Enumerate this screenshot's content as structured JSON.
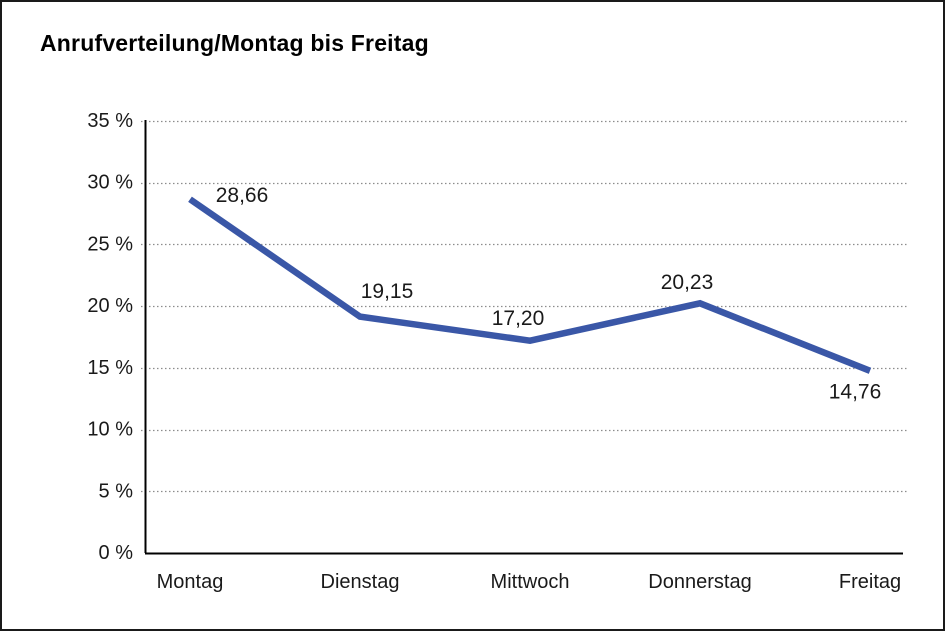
{
  "title": "Anrufverteilung/Montag bis Freitag",
  "chart_data": {
    "type": "line",
    "title": "Anrufverteilung/Montag bis Freitag",
    "categories": [
      "Montag",
      "Dienstag",
      "Mittwoch",
      "Donnerstag",
      "Freitag"
    ],
    "series": [
      {
        "name": "Anrufverteilung",
        "values": [
          28.66,
          19.15,
          17.2,
          20.23,
          14.76
        ],
        "value_labels": [
          "28,66",
          "19,15",
          "17,20",
          "20,23",
          "14,76"
        ]
      }
    ],
    "xlabel": "",
    "ylabel": "",
    "ylim": [
      0,
      35
    ],
    "ytick_values": [
      0,
      5,
      10,
      15,
      20,
      25,
      30,
      35
    ],
    "ytick_labels": [
      "0 %",
      "5 %",
      "10 %",
      "15 %",
      "20 %",
      "25 %",
      "30 %",
      "35 %"
    ],
    "grid": "dotted horizontal",
    "legend_position": "none",
    "colors": {
      "line": "#3A57A7",
      "grid": "#8c8c8c",
      "axis": "#000000",
      "text": "#1a1a1a",
      "background": "#ffffff"
    }
  }
}
